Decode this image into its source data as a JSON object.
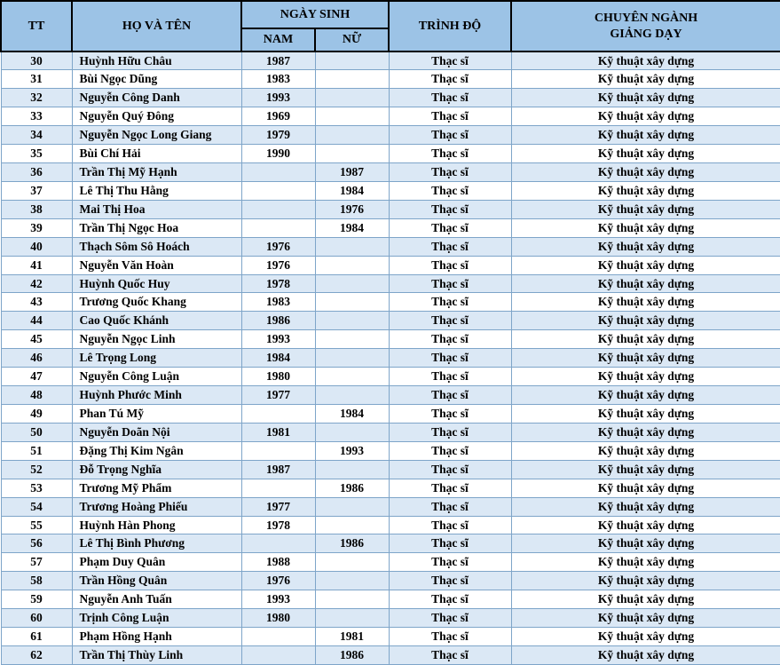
{
  "colors": {
    "header_bg": "#9CC3E6",
    "stripe": "#DBE8F5",
    "row_border": "#7EA5C9",
    "header_border": "#000000",
    "text": "#000000"
  },
  "table": {
    "headers": {
      "tt": "TT",
      "name": "HỌ VÀ TÊN",
      "birth": "NGÀY SINH",
      "male": "NAM",
      "female": "NỮ",
      "level": "TRÌNH ĐỘ",
      "major": "CHUYÊN NGÀNH\nGIẢNG DẠY"
    },
    "rows": [
      {
        "tt": "30",
        "name": "Huỳnh Hữu Châu",
        "nam": "1987",
        "nu": "",
        "trinh_do": "Thạc sĩ",
        "chuyen_nganh": "Kỹ thuật xây dựng"
      },
      {
        "tt": "31",
        "name": "Bùi Ngọc Dũng",
        "nam": "1983",
        "nu": "",
        "trinh_do": "Thạc sĩ",
        "chuyen_nganh": "Kỹ thuật xây dựng"
      },
      {
        "tt": "32",
        "name": "Nguyễn Công Danh",
        "nam": "1993",
        "nu": "",
        "trinh_do": "Thạc sĩ",
        "chuyen_nganh": "Kỹ thuật xây dựng"
      },
      {
        "tt": "33",
        "name": "Nguyễn Quý Đông",
        "nam": "1969",
        "nu": "",
        "trinh_do": "Thạc sĩ",
        "chuyen_nganh": "Kỹ thuật xây dựng"
      },
      {
        "tt": "34",
        "name": "Nguyễn Ngọc Long Giang",
        "nam": "1979",
        "nu": "",
        "trinh_do": "Thạc sĩ",
        "chuyen_nganh": "Kỹ thuật xây dựng"
      },
      {
        "tt": "35",
        "name": "Bùi Chí Hải",
        "nam": "1990",
        "nu": "",
        "trinh_do": "Thạc sĩ",
        "chuyen_nganh": "Kỹ thuật xây dựng"
      },
      {
        "tt": "36",
        "name": "Trần Thị Mỹ Hạnh",
        "nam": "",
        "nu": "1987",
        "trinh_do": "Thạc sĩ",
        "chuyen_nganh": "Kỹ thuật xây dựng"
      },
      {
        "tt": "37",
        "name": "Lê Thị Thu Hằng",
        "nam": "",
        "nu": "1984",
        "trinh_do": "Thạc sĩ",
        "chuyen_nganh": "Kỹ thuật xây dựng"
      },
      {
        "tt": "38",
        "name": "Mai Thị Hoa",
        "nam": "",
        "nu": "1976",
        "trinh_do": "Thạc sĩ",
        "chuyen_nganh": "Kỹ thuật xây dựng"
      },
      {
        "tt": "39",
        "name": "Trần Thị Ngọc Hoa",
        "nam": "",
        "nu": "1984",
        "trinh_do": "Thạc sĩ",
        "chuyen_nganh": "Kỹ thuật xây dựng"
      },
      {
        "tt": "40",
        "name": "Thạch Sôm Sô Hoách",
        "nam": "1976",
        "nu": "",
        "trinh_do": "Thạc sĩ",
        "chuyen_nganh": "Kỹ thuật xây dựng"
      },
      {
        "tt": "41",
        "name": "Nguyễn Văn Hoàn",
        "nam": "1976",
        "nu": "",
        "trinh_do": "Thạc sĩ",
        "chuyen_nganh": "Kỹ thuật xây dựng"
      },
      {
        "tt": "42",
        "name": "Huỳnh Quốc Huy",
        "nam": "1978",
        "nu": "",
        "trinh_do": "Thạc sĩ",
        "chuyen_nganh": "Kỹ thuật xây dựng"
      },
      {
        "tt": "43",
        "name": "Trương Quốc Khang",
        "nam": "1983",
        "nu": "",
        "trinh_do": "Thạc sĩ",
        "chuyen_nganh": "Kỹ thuật xây dựng"
      },
      {
        "tt": "44",
        "name": "Cao Quốc Khánh",
        "nam": "1986",
        "nu": "",
        "trinh_do": "Thạc sĩ",
        "chuyen_nganh": "Kỹ thuật xây dựng"
      },
      {
        "tt": "45",
        "name": "Nguyễn Ngọc Linh",
        "nam": "1993",
        "nu": "",
        "trinh_do": "Thạc sĩ",
        "chuyen_nganh": "Kỹ thuật xây dựng"
      },
      {
        "tt": "46",
        "name": "Lê Trọng Long",
        "nam": "1984",
        "nu": "",
        "trinh_do": "Thạc sĩ",
        "chuyen_nganh": "Kỹ thuật xây dựng"
      },
      {
        "tt": "47",
        "name": "Nguyễn Công Luận",
        "nam": "1980",
        "nu": "",
        "trinh_do": "Thạc sĩ",
        "chuyen_nganh": "Kỹ thuật xây dựng"
      },
      {
        "tt": "48",
        "name": "Huỳnh Phước Minh",
        "nam": "1977",
        "nu": "",
        "trinh_do": "Thạc sĩ",
        "chuyen_nganh": "Kỹ thuật xây dựng"
      },
      {
        "tt": "49",
        "name": "Phan Tú Mỹ",
        "nam": "",
        "nu": "1984",
        "trinh_do": "Thạc sĩ",
        "chuyen_nganh": "Kỹ thuật xây dựng"
      },
      {
        "tt": "50",
        "name": "Nguyễn Doãn Nội",
        "nam": "1981",
        "nu": "",
        "trinh_do": "Thạc sĩ",
        "chuyen_nganh": "Kỹ thuật xây dựng"
      },
      {
        "tt": "51",
        "name": "Đặng Thị Kim Ngân",
        "nam": "",
        "nu": "1993",
        "trinh_do": "Thạc sĩ",
        "chuyen_nganh": "Kỹ thuật xây dựng"
      },
      {
        "tt": "52",
        "name": "Đỗ Trọng Nghĩa",
        "nam": "1987",
        "nu": "",
        "trinh_do": "Thạc sĩ",
        "chuyen_nganh": "Kỹ thuật xây dựng"
      },
      {
        "tt": "53",
        "name": "Trương Mỹ Phẩm",
        "nam": "",
        "nu": "1986",
        "trinh_do": "Thạc sĩ",
        "chuyen_nganh": "Kỹ thuật xây dựng"
      },
      {
        "tt": "54",
        "name": "Trương Hoàng Phiếu",
        "nam": "1977",
        "nu": "",
        "trinh_do": "Thạc sĩ",
        "chuyen_nganh": "Kỹ thuật xây dựng"
      },
      {
        "tt": "55",
        "name": "Huỳnh Hàn Phong",
        "nam": "1978",
        "nu": "",
        "trinh_do": "Thạc sĩ",
        "chuyen_nganh": "Kỹ thuật xây dựng"
      },
      {
        "tt": "56",
        "name": "Lê Thị Bình Phương",
        "nam": "",
        "nu": "1986",
        "trinh_do": "Thạc sĩ",
        "chuyen_nganh": "Kỹ thuật xây dựng"
      },
      {
        "tt": "57",
        "name": "Phạm Duy Quân",
        "nam": "1988",
        "nu": "",
        "trinh_do": "Thạc sĩ",
        "chuyen_nganh": "Kỹ thuật xây dựng"
      },
      {
        "tt": "58",
        "name": "Trần Hồng Quân",
        "nam": "1976",
        "nu": "",
        "trinh_do": "Thạc sĩ",
        "chuyen_nganh": "Kỹ thuật xây dựng"
      },
      {
        "tt": "59",
        "name": "Nguyễn Anh Tuấn",
        "nam": "1993",
        "nu": "",
        "trinh_do": "Thạc sĩ",
        "chuyen_nganh": "Kỹ thuật xây dựng"
      },
      {
        "tt": "60",
        "name": "Trịnh Công Luận",
        "nam": "1980",
        "nu": "",
        "trinh_do": "Thạc sĩ",
        "chuyen_nganh": "Kỹ thuật xây dựng"
      },
      {
        "tt": "61",
        "name": "Phạm Hồng Hạnh",
        "nam": "",
        "nu": "1981",
        "trinh_do": "Thạc sĩ",
        "chuyen_nganh": "Kỹ thuật xây dựng"
      },
      {
        "tt": "62",
        "name": "Trần Thị Thùy Linh",
        "nam": "",
        "nu": "1986",
        "trinh_do": "Thạc sĩ",
        "chuyen_nganh": "Kỹ thuật xây dựng"
      }
    ]
  }
}
